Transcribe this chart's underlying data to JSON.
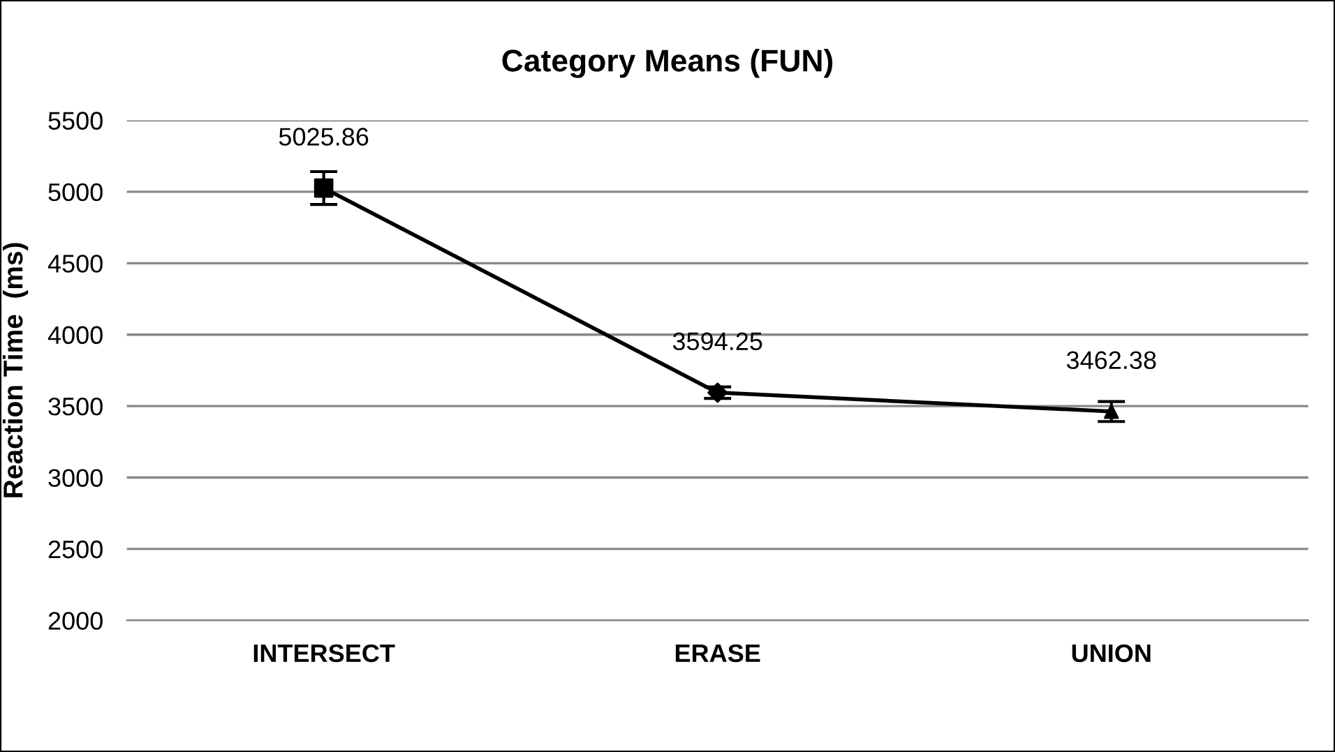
{
  "chart_data": {
    "type": "line",
    "title": "Category Means (FUN)",
    "ylabel": "Reaction Time  (ms)",
    "categories": [
      "INTERSECT",
      "ERASE",
      "UNION"
    ],
    "series": [
      {
        "type": "line",
        "color": "#000000",
        "values": [
          5025.86,
          3594.25,
          3462.38
        ],
        "marker": "none",
        "value_labels": [
          "5025.86",
          "3594.25",
          "3462.38"
        ]
      },
      {
        "type": "scatter",
        "color": "#000000",
        "x": [
          "INTERSECT"
        ],
        "values": [
          5026
        ],
        "errors": [
          115
        ],
        "marker": "square"
      },
      {
        "type": "scatter",
        "color": "#000000",
        "x": [
          "ERASE"
        ],
        "values": [
          3594
        ],
        "errors": [
          40
        ],
        "marker": "diamond"
      },
      {
        "type": "scatter",
        "color": "#000000",
        "x": [
          "UNION"
        ],
        "values": [
          3462
        ],
        "errors": [
          70
        ],
        "marker": "triangle"
      }
    ],
    "ylim": [
      2000,
      5500
    ],
    "yticks": [
      2000,
      2500,
      3000,
      3500,
      4000,
      4500,
      5000,
      5500
    ],
    "grid": "y",
    "legend": false
  }
}
